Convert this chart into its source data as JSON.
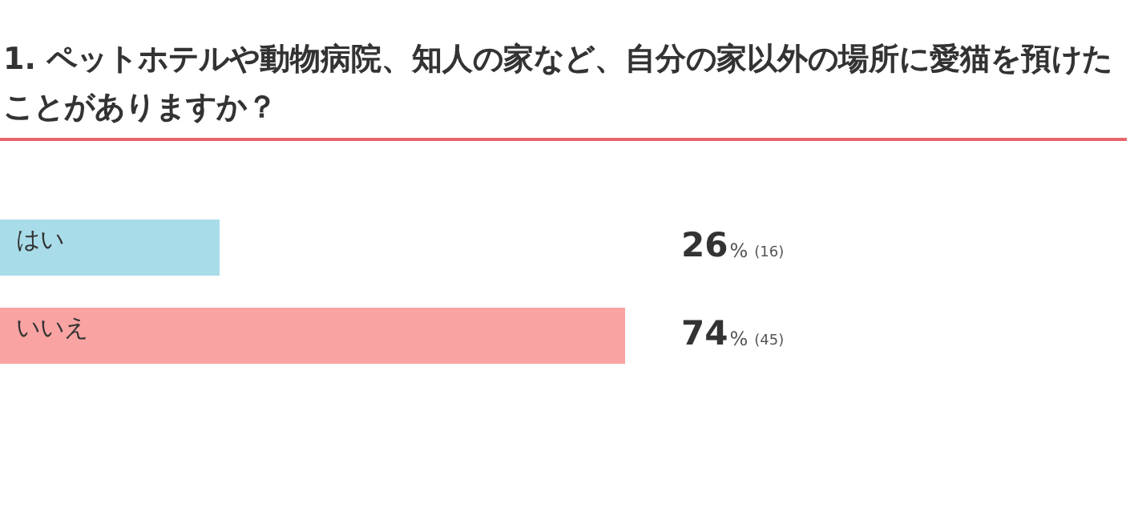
{
  "chart_data": {
    "type": "bar",
    "orientation": "horizontal",
    "title": "1. ペットホテルや動物病院、知人の家など、自分の家以外の場所に愛猫を預けたことがありますか？",
    "categories": [
      "はい",
      "いいえ"
    ],
    "values": [
      26,
      74
    ],
    "colors": [
      "#a8dce8",
      "#f9a3a3"
    ],
    "value_labels": [
      "26% (16)",
      "74% (45)"
    ]
  }
}
